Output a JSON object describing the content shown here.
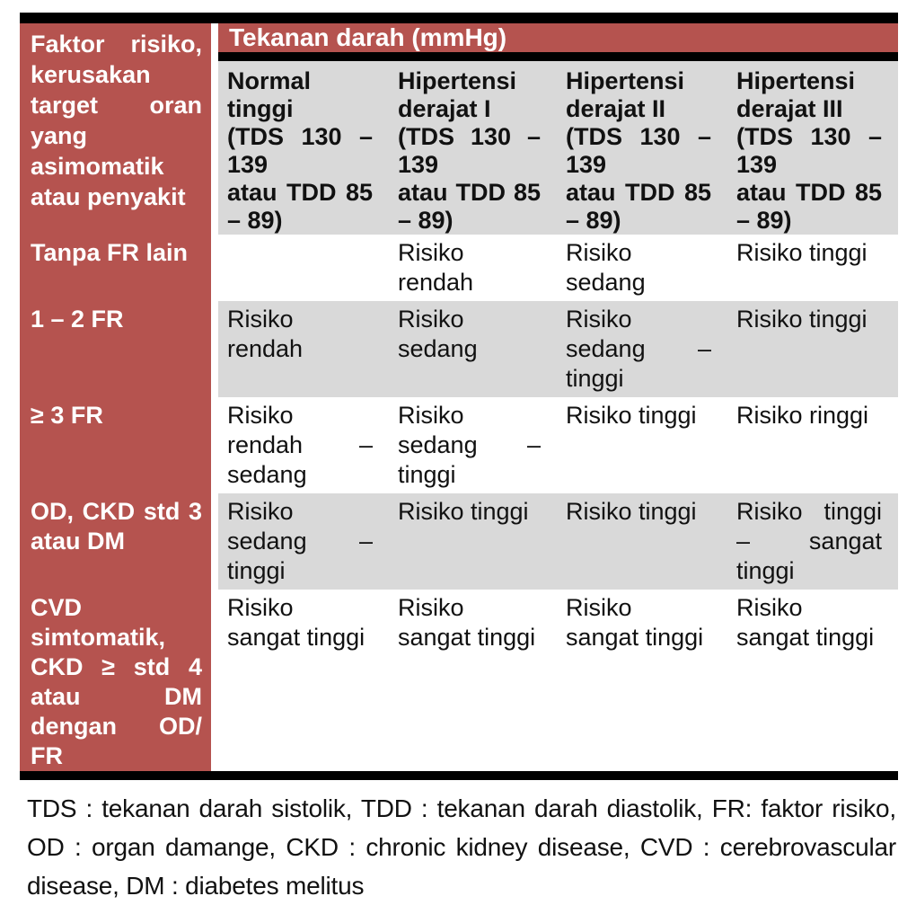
{
  "document": {
    "corner_header": "Faktor risiko, kerusakan target oran yang asimomatik atau penyakit",
    "group_header": "Tekanan darah (mmHg)",
    "columns": [
      "Normal tinggi\n(TDS 130 – 139\natau TDD 85 – 89)",
      "Hipertensi derajat I\n(TDS 130 – 139\natau TDD 85 – 89)",
      "Hipertensi derajat II\n(TDS 130 – 139\natau TDD 85 – 89)",
      "Hipertensi derajat III\n(TDS 130 – 139\natau TDD 85 – 89)"
    ],
    "rows": [
      {
        "label": "Tanpa FR lain",
        "cells": [
          "",
          "Risiko rendah",
          "Risiko sedang",
          "Risiko tinggi"
        ]
      },
      {
        "label": "1 – 2 FR",
        "cells": [
          "Risiko rendah",
          "Risiko sedang",
          "Risiko sedang – tinggi",
          "Risiko tinggi"
        ]
      },
      {
        "label": "≥ 3 FR",
        "cells": [
          "Risiko rendah – sedang",
          "Risiko sedang – tinggi",
          "Risiko tinggi",
          "Risiko ringgi"
        ]
      },
      {
        "label": "OD, CKD std 3 atau DM",
        "cells": [
          "Risiko sedang – tinggi",
          "Risiko tinggi",
          "Risiko tinggi",
          "Risiko tinggi – sangat tinggi"
        ]
      },
      {
        "label": "CVD simtomatik, CKD ≥ std 4 atau DM dengan OD/ FR",
        "cells": [
          "Risiko sangat tinggi",
          "Risiko sangat tinggi",
          "Risiko sangat tinggi",
          "Risiko sangat tinggi"
        ]
      }
    ],
    "footnote": "TDS : tekanan darah sistolik, TDD : tekanan darah diastolik, FR: faktor risiko, OD : organ damange, CKD : chronic kidney disease, CVD : cerebrovascular disease, DM : diabetes melitus",
    "colors": {
      "accent_red": "#b5534f",
      "cell_gray": "#d9d9d9",
      "rule_black": "#000000"
    }
  }
}
